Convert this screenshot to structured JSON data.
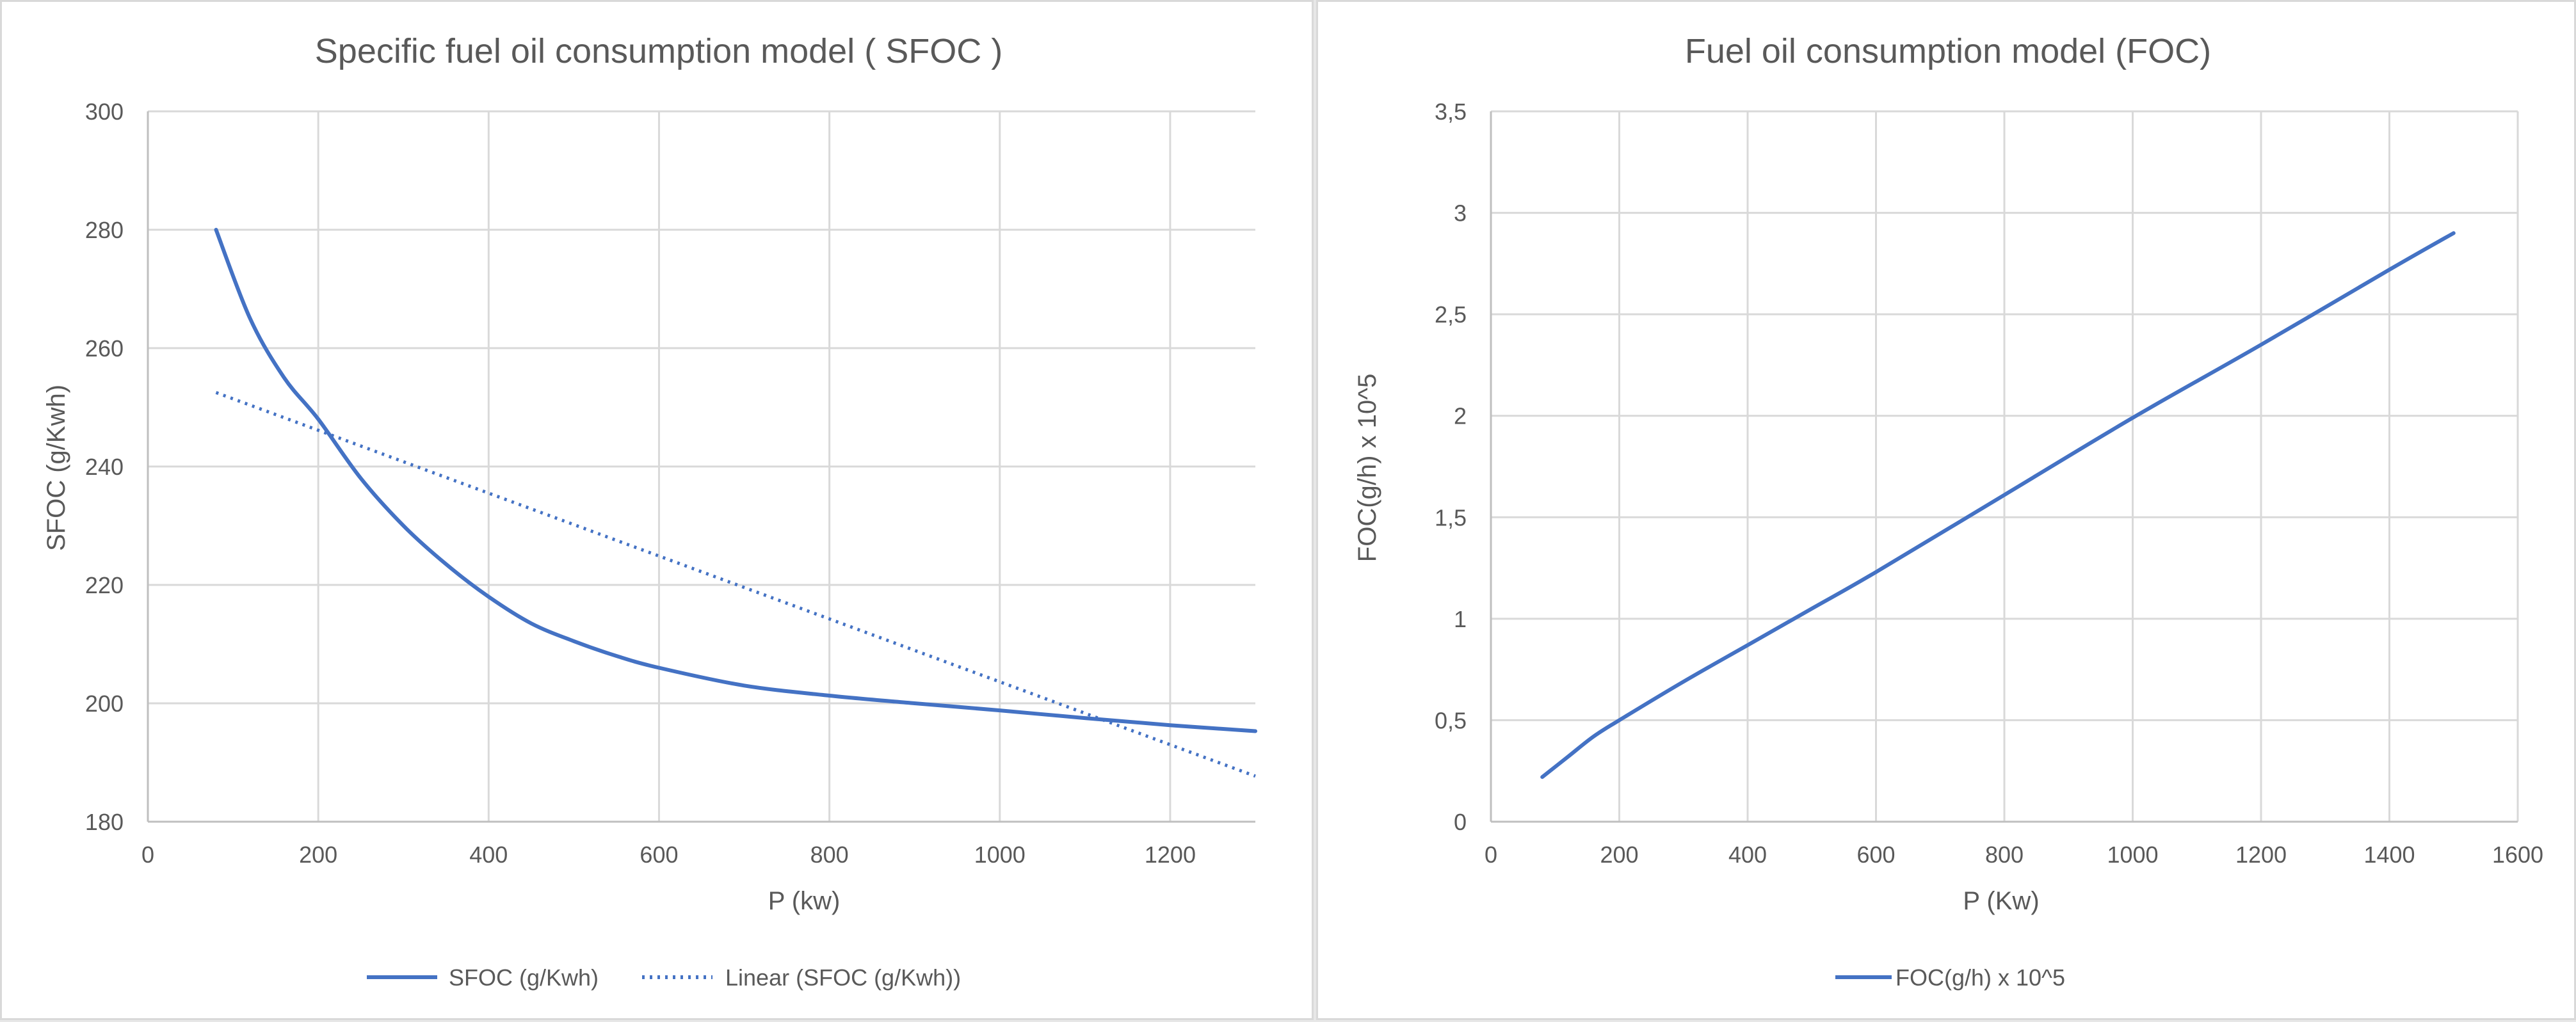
{
  "colors": {
    "series": "#4472c4",
    "grid": "#d9d9d9",
    "text": "#595959"
  },
  "chart_data": [
    {
      "type": "line",
      "title": "Specific fuel oil consumption model ( SFOC )",
      "xlabel": "P (kw)",
      "ylabel": "SFOC (g/Kwh)",
      "xlim": [
        0,
        1300
      ],
      "ylim": [
        180,
        300
      ],
      "x_ticks": [
        0,
        200,
        400,
        600,
        800,
        1000,
        1200
      ],
      "y_ticks": [
        180,
        200,
        220,
        240,
        260,
        280,
        300
      ],
      "x_tick_labels": [
        "0",
        "200",
        "400",
        "600",
        "800",
        "1000",
        "1200"
      ],
      "y_tick_labels": [
        "180",
        "200",
        "220",
        "240",
        "260",
        "280",
        "300"
      ],
      "grid": true,
      "legend": "bottom",
      "series": [
        {
          "name": "SFOC (g/Kwh)",
          "style": "solid",
          "x": [
            80,
            120,
            160,
            200,
            250,
            300,
            350,
            400,
            450,
            500,
            550,
            600,
            700,
            800,
            900,
            1000,
            1100,
            1200,
            1300
          ],
          "y": [
            280,
            265,
            255,
            248,
            238,
            230,
            223.5,
            218,
            213.5,
            210.5,
            208,
            206,
            203,
            201.3,
            200,
            198.8,
            197.5,
            196.3,
            195.3
          ]
        },
        {
          "name": "Linear (SFOC (g/Kwh))",
          "style": "dotted",
          "x": [
            80,
            1300
          ],
          "y": [
            252.5,
            187.7
          ]
        }
      ]
    },
    {
      "type": "line",
      "title": "Fuel oil consumption model (FOC)",
      "xlabel": "P (Kw)",
      "ylabel": "FOC(g/h) x 10^5",
      "xlim": [
        0,
        1600
      ],
      "ylim": [
        0,
        3.5
      ],
      "x_ticks": [
        0,
        200,
        400,
        600,
        800,
        1000,
        1200,
        1400,
        1600
      ],
      "y_ticks": [
        0,
        0.5,
        1,
        1.5,
        2,
        2.5,
        3,
        3.5
      ],
      "x_tick_labels": [
        "0",
        "200",
        "400",
        "600",
        "800",
        "1000",
        "1200",
        "1400",
        "1600"
      ],
      "y_tick_labels": [
        "0",
        "0,5",
        "1",
        "1,5",
        "2",
        "2,5",
        "3",
        "3,5"
      ],
      "grid": true,
      "legend": "bottom",
      "series": [
        {
          "name": "FOC(g/h) x 10^5",
          "style": "solid",
          "x": [
            80,
            120,
            160,
            200,
            300,
            400,
            500,
            600,
            800,
            1000,
            1200,
            1400,
            1500
          ],
          "y": [
            0.22,
            0.32,
            0.42,
            0.5,
            0.69,
            0.87,
            1.05,
            1.23,
            1.61,
            1.99,
            2.35,
            2.72,
            2.9
          ]
        }
      ]
    }
  ]
}
